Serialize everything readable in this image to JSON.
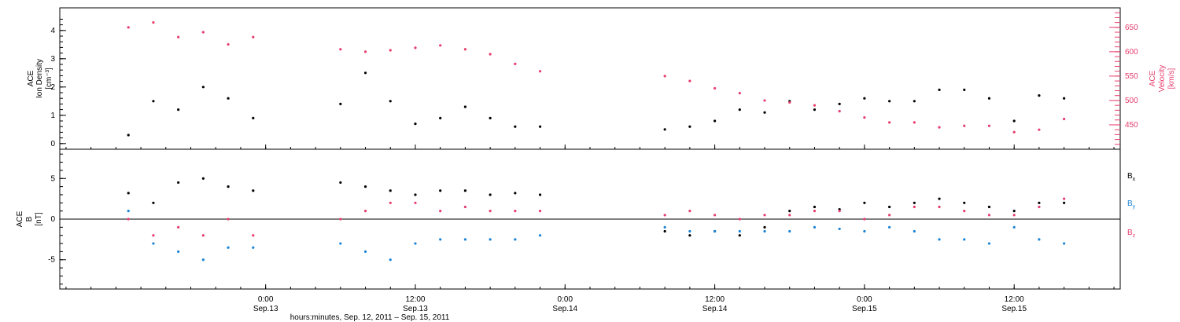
{
  "chart_data": [
    {
      "type": "scatter",
      "panel": "plasma",
      "ylabel": [
        "ACE",
        "Ion Density",
        "[cm⁻³]"
      ],
      "ylabel_right": [
        "ACE",
        "Velocity",
        "[km/s]"
      ],
      "ylim": [
        -0.2,
        4.8
      ],
      "yticks": [
        "0",
        "1",
        "2",
        "3",
        "4"
      ],
      "yticks_values": [
        0,
        1,
        2,
        3,
        4
      ],
      "ylim_right": [
        400,
        690
      ],
      "yticks_right": [
        "450",
        "500",
        "550",
        "600",
        "650"
      ],
      "yticks_right_values": [
        450,
        500,
        550,
        600,
        650
      ],
      "data_gaps_hours": [
        [
          12.4,
          17.2
        ],
        [
          36.0,
          43.3
        ]
      ],
      "series": [
        {
          "name": "Ion Density",
          "color": "#000000",
          "x_hours": [
            1,
            3,
            5,
            7,
            9,
            11,
            18,
            20,
            22,
            24,
            26,
            28,
            30,
            32,
            34,
            44,
            46,
            48,
            50,
            52,
            54,
            56,
            58,
            60,
            62,
            64,
            66,
            68,
            70,
            72,
            74,
            76
          ],
          "values": [
            0.3,
            1.5,
            1.2,
            2.0,
            1.6,
            0.9,
            1.4,
            2.5,
            1.5,
            0.7,
            0.9,
            1.3,
            0.9,
            0.6,
            0.6,
            0.5,
            0.6,
            0.8,
            1.2,
            1.1,
            1.5,
            1.2,
            1.4,
            1.6,
            1.5,
            1.5,
            1.9,
            1.9,
            1.6,
            0.8,
            1.7,
            1.6
          ]
        },
        {
          "name": "Velocity",
          "color": "#e63d6e",
          "x_hours": [
            1,
            3,
            5,
            7,
            9,
            11,
            18,
            20,
            22,
            24,
            26,
            28,
            30,
            32,
            34,
            44,
            46,
            48,
            50,
            52,
            54,
            56,
            58,
            60,
            62,
            64,
            66,
            68,
            70,
            72,
            74,
            76
          ],
          "values": [
            650,
            660,
            630,
            640,
            615,
            630,
            605,
            600,
            603,
            608,
            613,
            605,
            595,
            575,
            560,
            550,
            540,
            525,
            515,
            500,
            496,
            490,
            478,
            465,
            455,
            455,
            445,
            448,
            448,
            435,
            440,
            462
          ]
        }
      ]
    },
    {
      "type": "scatter",
      "panel": "magnetic",
      "ylabel": [
        "ACE",
        "B",
        "[nT]"
      ],
      "ylim": [
        -8.6,
        8.6
      ],
      "yticks": [
        "-5",
        "0",
        "5"
      ],
      "yticks_values": [
        -5,
        0,
        5
      ],
      "zero_line": true,
      "legend": [
        "Bx",
        "By",
        "Bz"
      ],
      "legend_position": "right",
      "data_gaps_hours": [
        [
          12.4,
          17.2
        ],
        [
          36.0,
          43.3
        ]
      ],
      "series": [
        {
          "name": "Bx",
          "color": "#000000",
          "x_hours": [
            1,
            3,
            5,
            7,
            9,
            11,
            18,
            20,
            22,
            24,
            26,
            28,
            30,
            32,
            34,
            44,
            46,
            48,
            50,
            52,
            54,
            56,
            58,
            60,
            62,
            64,
            66,
            68,
            70,
            72,
            74,
            76
          ],
          "values": [
            3.2,
            2.0,
            4.5,
            5.0,
            4.0,
            3.5,
            4.5,
            4.0,
            3.5,
            3.0,
            3.5,
            3.5,
            3.0,
            3.2,
            3.0,
            -1.5,
            -2.0,
            -1.5,
            -2.0,
            -1.0,
            1.0,
            1.5,
            1.2,
            2.0,
            1.5,
            2.0,
            2.5,
            2.0,
            1.5,
            1.0,
            2.0,
            2.0
          ]
        },
        {
          "name": "By",
          "color": "#1b84d6",
          "x_hours": [
            1,
            3,
            5,
            7,
            9,
            11,
            18,
            20,
            22,
            24,
            26,
            28,
            30,
            32,
            34,
            44,
            46,
            48,
            50,
            52,
            54,
            56,
            58,
            60,
            62,
            64,
            66,
            68,
            70,
            72,
            74,
            76
          ],
          "values": [
            1.0,
            -3.0,
            -4.0,
            -5.0,
            -3.5,
            -3.5,
            -3.0,
            -4.0,
            -5.0,
            -3.0,
            -2.5,
            -2.5,
            -2.5,
            -2.5,
            -2.0,
            -1.0,
            -1.5,
            -1.5,
            -1.5,
            -1.5,
            -1.5,
            -1.0,
            -1.2,
            -1.5,
            -1.0,
            -1.5,
            -2.5,
            -2.5,
            -3.0,
            -1.0,
            -2.5,
            -3.0
          ]
        },
        {
          "name": "Bz",
          "color": "#e63d6e",
          "x_hours": [
            1,
            3,
            5,
            7,
            9,
            11,
            18,
            20,
            22,
            24,
            26,
            28,
            30,
            32,
            34,
            44,
            46,
            48,
            50,
            52,
            54,
            56,
            58,
            60,
            62,
            64,
            66,
            68,
            70,
            72,
            74,
            76
          ],
          "values": [
            0.0,
            -2.0,
            -1.0,
            -2.0,
            0.0,
            -2.0,
            0.0,
            1.0,
            2.0,
            2.0,
            1.0,
            1.5,
            1.0,
            1.0,
            1.0,
            0.5,
            1.0,
            0.5,
            0.0,
            0.5,
            0.5,
            1.0,
            1.0,
            0.0,
            0.5,
            1.5,
            1.5,
            1.0,
            0.5,
            0.5,
            1.5,
            2.5
          ]
        }
      ]
    }
  ],
  "xaxis": {
    "label": "hours:minutes, Sep. 12, 2011 – Sep. 15, 2011",
    "xlim_hours": [
      -4.5,
      80.5
    ],
    "ticks": [
      {
        "hour": 12,
        "time": "0:00",
        "date": "Sep.13"
      },
      {
        "hour": 24,
        "time": "12:00",
        "date": "Sep.13"
      },
      {
        "hour": 36,
        "time": "0:00",
        "date": "Sep.14"
      },
      {
        "hour": 48,
        "time": "12:00",
        "date": "Sep.14"
      },
      {
        "hour": 60,
        "time": "0:00",
        "date": "Sep.15"
      },
      {
        "hour": 72,
        "time": "12:00",
        "date": "Sep.15"
      }
    ]
  },
  "legend_labels": {
    "bx": {
      "main": "B",
      "sub": "x"
    },
    "by": {
      "main": "B",
      "sub": "y"
    },
    "bz": {
      "main": "B",
      "sub": "z"
    }
  }
}
